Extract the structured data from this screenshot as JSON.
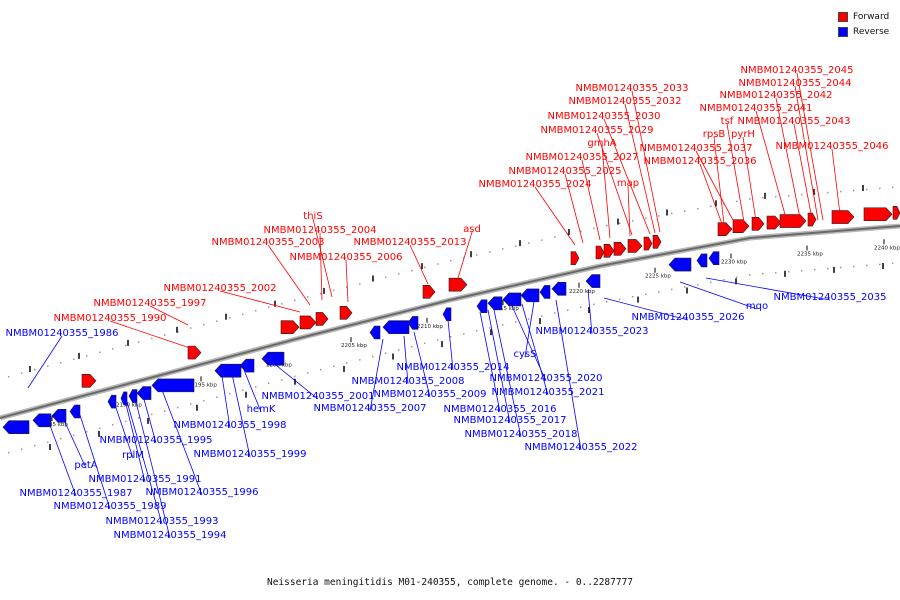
{
  "caption": "Neisseria meningitidis M01-240355, complete genome. - 0..2287777",
  "legend": [
    {
      "label": "Forward",
      "color": "#ff0000"
    },
    {
      "label": "Reverse",
      "color": "#0000ff"
    }
  ],
  "colors": {
    "forward": "#ff0000",
    "reverse": "#0000ff",
    "backbone": "#6a6a6a"
  },
  "ticks": [
    "2185 kbp",
    "2190 kbp",
    "2195 kbp",
    "2200 kbp",
    "2205 kbp",
    "2210 kbp",
    "2215 kbp",
    "2220 kbp",
    "2225 kbp",
    "2230 kbp",
    "2235 kbp",
    "2240 kbp"
  ],
  "forward_labels": [
    "NMBM01240355_1990",
    "NMBM01240355_1997",
    "NMBM01240355_2002",
    "NMBM01240355_2003",
    "NMBM01240355_2004",
    "thiS",
    "NMBM01240355_2006",
    "NMBM01240355_2013",
    "asd",
    "NMBM01240355_2024",
    "NMBM01240355_2025",
    "NMBM01240355_2027",
    "gmhA",
    "map",
    "NMBM01240355_2029",
    "NMBM01240355_2030",
    "NMBM01240355_2032",
    "NMBM01240355_2033",
    "NMBM01240355_2036",
    "rpsB",
    "NMBM01240355_2037",
    "tsf",
    "pyrH",
    "NMBM01240355_2041",
    "NMBM01240355_2042",
    "NMBM01240355_2043",
    "NMBM01240355_2044",
    "NMBM01240355_2045",
    "NMBM01240355_2046"
  ],
  "reverse_labels": [
    "NMBM01240355_1986",
    "petA",
    "NMBM01240355_1987",
    "NMBM01240355_1989",
    "rplM",
    "NMBM01240355_1991",
    "NMBM01240355_1993",
    "NMBM01240355_1994",
    "NMBM01240355_1995",
    "NMBM01240355_1996",
    "NMBM01240355_1998",
    "NMBM01240355_1999",
    "hemK",
    "NMBM01240355_2001",
    "NMBM01240355_2007",
    "NMBM01240355_2008",
    "NMBM01240355_2009",
    "NMBM01240355_2014",
    "NMBM01240355_2016",
    "NMBM01240355_2017",
    "NMBM01240355_2018",
    "NMBM01240355_2020",
    "NMBM01240355_2021",
    "cysS",
    "NMBM01240355_2022",
    "NMBM01240355_2023",
    "NMBM01240355_2026",
    "mqo",
    "NMBM01240355_2035"
  ]
}
